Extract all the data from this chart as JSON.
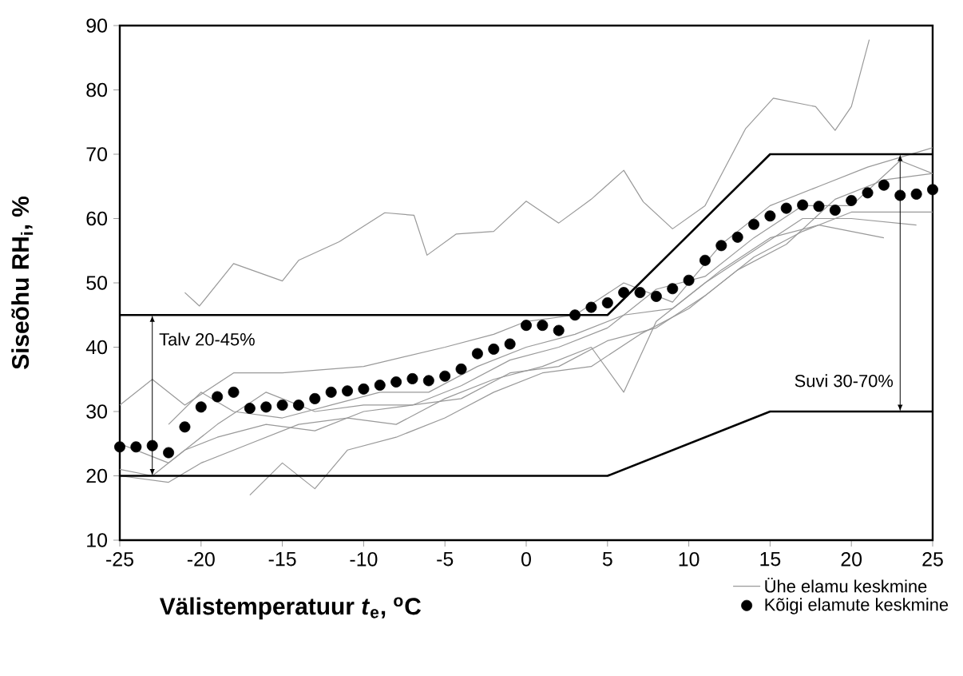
{
  "chart_data": {
    "type": "line",
    "xlabel": "Välistemperatuur *t*$_{e}$, $^{o}$C",
    "ylabel": "Siseõhu RH$_{i}$, %",
    "xlim": [
      -25,
      25
    ],
    "ylim": [
      10,
      90
    ],
    "xticks": [
      -25,
      -20,
      -15,
      -10,
      -5,
      0,
      5,
      10,
      15,
      20,
      25
    ],
    "yticks": [
      10,
      20,
      30,
      40,
      50,
      60,
      70,
      80,
      90
    ],
    "grid": false,
    "legend": "bottom right",
    "series": [
      {
        "name": "Ühe elamu keskmine",
        "color": "#999999",
        "x": [
          -21,
          -20.1,
          -18,
          -15,
          -14,
          -11.5,
          -8.7,
          -6.9,
          -6.1,
          -4.3,
          -2,
          0,
          2,
          4,
          6,
          7.2,
          9,
          11,
          13.5,
          15.2,
          17.8,
          19,
          20,
          21.1
        ],
        "values": [
          48.5,
          46.4,
          53,
          50.3,
          53.5,
          56.4,
          60.9,
          60.5,
          54.3,
          57.6,
          58,
          62.7,
          59.3,
          63,
          67.5,
          62.6,
          58.4,
          62,
          74,
          78.7,
          77.4,
          73.7,
          77.4,
          87.8
        ]
      },
      {
        "color": "#999999",
        "x": [
          -25,
          -23,
          -21,
          -18,
          -15,
          -10,
          -5,
          -2,
          0,
          3,
          6,
          9,
          12,
          15,
          18,
          21,
          25
        ],
        "values": [
          31,
          35,
          31,
          36,
          36,
          37,
          40,
          42,
          44,
          45,
          50,
          47,
          56,
          62,
          65,
          68,
          71
        ]
      },
      {
        "color": "#999999",
        "x": [
          -25,
          -23,
          -21,
          -19,
          -16,
          -13,
          -10,
          -7,
          -4,
          -1,
          2,
          5,
          8,
          11,
          14,
          17,
          20,
          25
        ],
        "values": [
          21,
          20,
          24,
          26,
          28,
          27,
          30,
          31,
          32,
          36,
          37,
          41,
          43,
          48,
          54,
          58,
          61,
          61
        ]
      },
      {
        "color": "#999999",
        "x": [
          -25,
          -22,
          -20,
          -17,
          -14,
          -11,
          -8,
          -5,
          -2,
          1,
          4,
          6,
          8,
          11,
          14,
          17,
          20,
          24
        ],
        "values": [
          20,
          19,
          22,
          25,
          28,
          29,
          28,
          32,
          35,
          37,
          40,
          33,
          44,
          50,
          55,
          60,
          60,
          59
        ]
      },
      {
        "color": "#999999",
        "x": [
          -22,
          -20,
          -18,
          -15,
          -12,
          -9,
          -6,
          -3,
          0,
          3,
          6,
          9,
          12,
          15,
          18,
          22
        ],
        "values": [
          28,
          33,
          30,
          29,
          31,
          33,
          33,
          37,
          40,
          42,
          45,
          46,
          52,
          57,
          59,
          57
        ]
      },
      {
        "color": "#999999",
        "x": [
          -17,
          -15,
          -13,
          -11,
          -8,
          -5,
          -2,
          1,
          4,
          7,
          10,
          13,
          16,
          19,
          22,
          25
        ],
        "values": [
          17,
          22,
          18,
          24,
          26,
          29,
          33,
          36,
          37,
          42,
          46,
          52,
          56,
          63,
          66,
          67
        ]
      },
      {
        "color": "#999999",
        "x": [
          -25,
          -22,
          -19,
          -16,
          -13,
          -10,
          -7,
          -4,
          -1,
          2,
          5,
          8,
          11,
          14,
          17,
          20,
          23,
          25
        ],
        "values": [
          25,
          22,
          28,
          33,
          30,
          31,
          31,
          34,
          38,
          40,
          43,
          49,
          51,
          57,
          62,
          62,
          69,
          67
        ]
      },
      {
        "name": "Kõigi elamute keskmine",
        "type": "scatter",
        "marker": "circle",
        "color": "#000000",
        "x": [
          -25,
          -24,
          -23,
          -22,
          -21,
          -20,
          -19,
          -18,
          -17,
          -16,
          -15,
          -14,
          -13,
          -12,
          -11,
          -10,
          -9,
          -8,
          -7,
          -6,
          -5,
          -4,
          -3,
          -2,
          -1,
          0,
          1,
          2,
          3,
          4,
          5,
          6,
          7,
          8,
          9,
          10,
          11,
          12,
          13,
          14,
          15,
          16,
          17,
          18,
          19,
          20,
          21,
          22,
          23,
          24,
          25
        ],
        "values": [
          24.5,
          24.5,
          24.7,
          23.6,
          27.6,
          30.7,
          32.3,
          33.0,
          30.5,
          30.7,
          31.0,
          31.0,
          32.0,
          33.0,
          33.2,
          33.5,
          34.1,
          34.6,
          35.1,
          34.8,
          35.5,
          36.6,
          39.0,
          39.7,
          40.5,
          43.4,
          43.4,
          42.6,
          45.0,
          46.2,
          46.9,
          48.5,
          48.5,
          47.9,
          49.1,
          50.4,
          53.5,
          55.8,
          57.1,
          59.1,
          60.4,
          61.6,
          62.1,
          61.9,
          61.3,
          62.8,
          64.0,
          65.2,
          63.6,
          63.8,
          64.5
        ]
      },
      {
        "color": "#000000",
        "x": [
          -25,
          5,
          15,
          25
        ],
        "values": [
          45,
          45,
          70,
          70
        ]
      },
      {
        "color": "#000000",
        "x": [
          -25,
          5,
          15,
          25
        ],
        "values": [
          20,
          20,
          30,
          30
        ]
      }
    ],
    "annotations": [
      {
        "text": "Talv 20-45%",
        "x": -23,
        "y": 45
      },
      {
        "text": "Suvi 30-70%",
        "x": 23,
        "y": 70
      }
    ]
  }
}
